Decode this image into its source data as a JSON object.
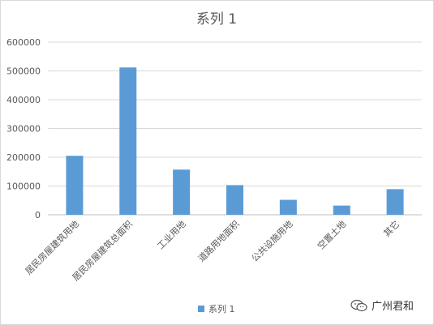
{
  "chart_data": {
    "type": "bar",
    "title": "系列 1",
    "categories": [
      "居民房屋建筑用地",
      "居民房屋建筑总面积",
      "工业用地",
      "道路用地面积",
      "公共设施用地",
      "空置土地",
      "其它"
    ],
    "series": [
      {
        "name": "系列 1",
        "values": [
          205000,
          512000,
          157000,
          103000,
          52000,
          32000,
          89000
        ]
      }
    ],
    "ylim": [
      0,
      600000
    ],
    "yticks": [
      0,
      100000,
      200000,
      300000,
      400000,
      500000,
      600000
    ],
    "ytick_labels": [
      "0",
      "100000",
      "200000",
      "300000",
      "400000",
      "500000",
      "600000"
    ],
    "grid": true,
    "legend": "bottom",
    "colors": {
      "bar": "#5b9bd5",
      "grid": "#d9d9d9",
      "text": "#595959"
    }
  },
  "watermark": {
    "text": "广州君和",
    "icon": "wechat-icon"
  }
}
